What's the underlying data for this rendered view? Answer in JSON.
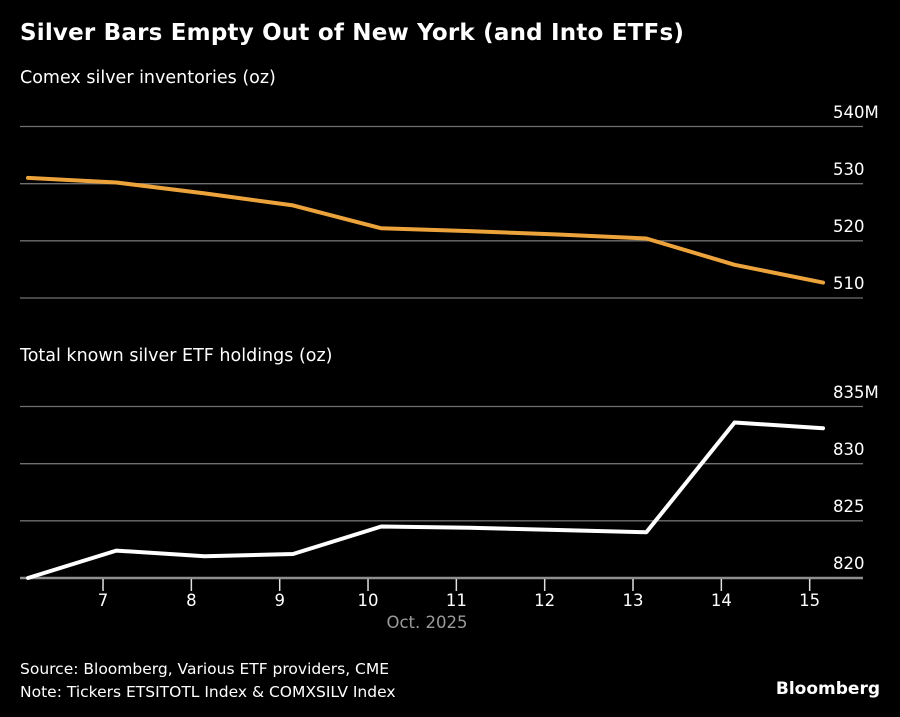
{
  "title": "Silver Bars Empty Out of New York (and Into ETFs)",
  "colors": {
    "background": "#000000",
    "text": "#ffffff",
    "grid": "#6f6f6f",
    "axis": "#8f8f8f",
    "tick": "#e0e0e0",
    "muted_text": "#9b9b9b",
    "comex_line": "#eda33b",
    "etf_line": "#ffffff"
  },
  "x_axis": {
    "tick_labels": [
      "7",
      "8",
      "9",
      "10",
      "11",
      "12",
      "13",
      "14",
      "15"
    ],
    "tick_days": [
      7,
      8,
      9,
      10,
      11,
      12,
      13,
      14,
      15
    ],
    "label": "Oct. 2025"
  },
  "chart_data": [
    {
      "type": "line",
      "title": "Comex silver inventories (oz)",
      "x_days": [
        6,
        7,
        8,
        9,
        10,
        11,
        12,
        13,
        14,
        15
      ],
      "series": [
        {
          "name": "Comex silver inventories (millions oz)",
          "color": "#eda33b",
          "values": [
            531.0,
            530.2,
            528.3,
            526.2,
            522.2,
            521.7,
            521.1,
            520.4,
            515.8,
            512.7
          ]
        }
      ],
      "yticks": [
        540,
        530,
        520,
        510
      ],
      "ytick_labels": [
        "540M",
        "530",
        "520",
        "510"
      ],
      "grid": true,
      "legend": "none"
    },
    {
      "type": "line",
      "title": "Total known silver ETF holdings (oz)",
      "x_days": [
        6,
        7,
        8,
        9,
        10,
        11,
        12,
        13,
        14,
        15
      ],
      "series": [
        {
          "name": "Total known silver ETF holdings (millions oz)",
          "color": "#ffffff",
          "values": [
            820.0,
            822.4,
            821.9,
            822.1,
            824.5,
            824.4,
            824.2,
            824.0,
            833.6,
            833.1
          ]
        }
      ],
      "yticks": [
        835,
        830,
        825,
        820
      ],
      "ytick_labels": [
        "835M",
        "830",
        "825",
        "820"
      ],
      "grid": true,
      "legend": "none"
    }
  ],
  "footer": {
    "source": "Source: Bloomberg, Various ETF providers, CME",
    "note": "Note: Tickers ETSITOTL Index & COMXSILV Index",
    "logo": "Bloomberg"
  }
}
